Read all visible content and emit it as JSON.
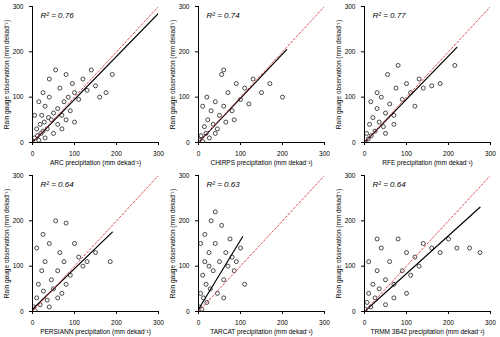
{
  "chart_data": [
    {
      "type": "scatter",
      "x_label": "ARC precipitation (mm dekad⁻¹)",
      "y_label": "Rain gauge observation (mm dekad⁻¹)",
      "annotation": "R² = 0.76",
      "xlim": [
        0,
        300
      ],
      "ylim": [
        0,
        300
      ],
      "xticks": [
        0,
        100,
        200,
        300
      ],
      "yticks": [
        0,
        100,
        200,
        300
      ],
      "series": [
        {
          "type": "scatter",
          "marker": "circle",
          "color": "#000000",
          "x": [
            2,
            5,
            8,
            10,
            12,
            15,
            18,
            20,
            22,
            25,
            28,
            30,
            35,
            38,
            40,
            45,
            50,
            55,
            60,
            65,
            70,
            75,
            80,
            85,
            90,
            95,
            100,
            110,
            120,
            130,
            140,
            150,
            160,
            175,
            190,
            5,
            15,
            25,
            40,
            60,
            80,
            30,
            50,
            70,
            100
          ],
          "values": [
            0,
            10,
            3,
            30,
            15,
            5,
            40,
            20,
            60,
            25,
            45,
            80,
            30,
            55,
            100,
            50,
            65,
            160,
            75,
            120,
            60,
            90,
            150,
            100,
            70,
            130,
            110,
            95,
            140,
            115,
            160,
            125,
            100,
            110,
            150,
            60,
            90,
            110,
            140,
            40,
            50,
            10,
            20,
            30,
            45
          ]
        },
        {
          "type": "line",
          "color": "#000000",
          "line_style": "solid",
          "x": [
            0,
            300
          ],
          "values": [
            0,
            285
          ]
        },
        {
          "type": "line",
          "color": "#e05050",
          "line_style": "dotted",
          "x": [
            0,
            300
          ],
          "values": [
            0,
            300
          ]
        }
      ]
    },
    {
      "type": "scatter",
      "x_label": "CHIRPS precipitation (mm dekad⁻¹)",
      "y_label": "Rain gauge observation (mm dekad⁻¹)",
      "annotation": "R² = 0.74",
      "xlim": [
        0,
        300
      ],
      "ylim": [
        0,
        300
      ],
      "xticks": [
        0,
        100,
        200,
        300
      ],
      "yticks": [
        0,
        100,
        200,
        300
      ],
      "series": [
        {
          "type": "scatter",
          "marker": "circle",
          "color": "#000000",
          "x": [
            3,
            6,
            10,
            14,
            18,
            22,
            26,
            30,
            35,
            40,
            45,
            50,
            55,
            60,
            65,
            70,
            80,
            90,
            100,
            110,
            120,
            130,
            150,
            170,
            200,
            10,
            20,
            40,
            60,
            85
          ],
          "values": [
            5,
            15,
            2,
            35,
            20,
            50,
            10,
            70,
            40,
            90,
            30,
            60,
            150,
            80,
            45,
            110,
            70,
            130,
            95,
            120,
            85,
            140,
            110,
            130,
            100,
            80,
            100,
            20,
            160,
            50
          ]
        },
        {
          "type": "line",
          "color": "#000000",
          "line_style": "solid",
          "x": [
            0,
            210
          ],
          "values": [
            0,
            205
          ]
        },
        {
          "type": "line",
          "color": "#e05050",
          "line_style": "dotted",
          "x": [
            0,
            300
          ],
          "values": [
            0,
            300
          ]
        }
      ]
    },
    {
      "type": "scatter",
      "x_label": "RFE precipitation (mm dekad⁻¹)",
      "y_label": "Rain gauge observation (mm dekad⁻¹)",
      "annotation": "R² = 0.77",
      "xlim": [
        0,
        300
      ],
      "ylim": [
        0,
        300
      ],
      "xticks": [
        0,
        100,
        200,
        300
      ],
      "yticks": [
        0,
        100,
        200,
        300
      ],
      "series": [
        {
          "type": "scatter",
          "marker": "circle",
          "color": "#000000",
          "x": [
            2,
            5,
            9,
            12,
            16,
            20,
            25,
            30,
            35,
            40,
            45,
            50,
            55,
            60,
            70,
            75,
            80,
            90,
            100,
            110,
            120,
            130,
            140,
            160,
            180,
            215,
            15,
            30,
            50,
            70
          ],
          "values": [
            0,
            20,
            8,
            40,
            15,
            55,
            25,
            75,
            45,
            100,
            35,
            65,
            150,
            85,
            60,
            120,
            170,
            95,
            130,
            110,
            80,
            140,
            120,
            125,
            130,
            170,
            90,
            110,
            20,
            40
          ]
        },
        {
          "type": "line",
          "color": "#000000",
          "line_style": "solid",
          "x": [
            0,
            220
          ],
          "values": [
            0,
            210
          ]
        },
        {
          "type": "line",
          "color": "#e05050",
          "line_style": "dotted",
          "x": [
            0,
            300
          ],
          "values": [
            0,
            300
          ]
        }
      ]
    },
    {
      "type": "scatter",
      "x_label": "PERSIANN precipitation (mm dekad⁻¹)",
      "y_label": "Rain gauge observation (mm dekad⁻¹)",
      "annotation": "R² = 0.64",
      "xlim": [
        0,
        300
      ],
      "ylim": [
        0,
        300
      ],
      "xticks": [
        0,
        100,
        200,
        300
      ],
      "yticks": [
        0,
        100,
        200,
        300
      ],
      "series": [
        {
          "type": "scatter",
          "marker": "circle",
          "color": "#000000",
          "x": [
            3,
            6,
            10,
            14,
            18,
            22,
            26,
            30,
            35,
            40,
            45,
            50,
            55,
            60,
            65,
            70,
            75,
            80,
            90,
            100,
            110,
            120,
            130,
            150,
            185,
            10,
            25,
            40,
            60,
            80
          ],
          "values": [
            10,
            2,
            30,
            60,
            15,
            90,
            45,
            110,
            25,
            150,
            70,
            50,
            200,
            90,
            130,
            40,
            110,
            195,
            80,
            150,
            120,
            100,
            110,
            130,
            110,
            140,
            170,
            10,
            30,
            60
          ]
        },
        {
          "type": "line",
          "color": "#000000",
          "line_style": "solid",
          "x": [
            0,
            190
          ],
          "values": [
            5,
            175
          ]
        },
        {
          "type": "line",
          "color": "#e05050",
          "line_style": "dotted",
          "x": [
            0,
            300
          ],
          "values": [
            0,
            300
          ]
        }
      ]
    },
    {
      "type": "scatter",
      "x_label": "TARCAT precipitation (mm dekad⁻¹)",
      "y_label": "Rain gauge observation (mm dekad⁻¹)",
      "annotation": "R² = 0.63",
      "xlim": [
        0,
        300
      ],
      "ylim": [
        0,
        300
      ],
      "xticks": [
        0,
        100,
        200,
        300
      ],
      "yticks": [
        0,
        100,
        200,
        300
      ],
      "series": [
        {
          "type": "scatter",
          "marker": "circle",
          "color": "#000000",
          "x": [
            2,
            5,
            8,
            10,
            12,
            15,
            18,
            20,
            25,
            28,
            30,
            35,
            40,
            45,
            50,
            55,
            60,
            65,
            70,
            75,
            80,
            85,
            90,
            100,
            110,
            5,
            15,
            25,
            40,
            60
          ],
          "values": [
            10,
            40,
            5,
            80,
            30,
            110,
            60,
            20,
            130,
            50,
            200,
            90,
            150,
            40,
            110,
            190,
            70,
            130,
            100,
            160,
            120,
            90,
            110,
            140,
            60,
            150,
            170,
            100,
            220,
            30
          ]
        },
        {
          "type": "line",
          "color": "#000000",
          "line_style": "solid",
          "x": [
            0,
            105
          ],
          "values": [
            5,
            165
          ]
        },
        {
          "type": "line",
          "color": "#e05050",
          "line_style": "dotted",
          "x": [
            0,
            300
          ],
          "values": [
            0,
            300
          ]
        }
      ]
    },
    {
      "type": "scatter",
      "x_label": "TRMM 3B42 precipitation (mm dekad⁻¹)",
      "y_label": "Rain gauge observation (mm dekad⁻¹)",
      "annotation": "R² = 0.64",
      "xlim": [
        0,
        300
      ],
      "ylim": [
        0,
        300
      ],
      "xticks": [
        0,
        100,
        200,
        300
      ],
      "yticks": [
        0,
        100,
        200,
        300
      ],
      "series": [
        {
          "type": "scatter",
          "marker": "circle",
          "color": "#000000",
          "x": [
            2,
            6,
            10,
            15,
            20,
            25,
            30,
            35,
            40,
            50,
            60,
            70,
            80,
            90,
            100,
            110,
            120,
            130,
            140,
            160,
            180,
            200,
            220,
            250,
            275,
            10,
            30,
            50,
            70,
            100
          ],
          "values": [
            5,
            20,
            40,
            10,
            60,
            30,
            90,
            50,
            140,
            70,
            110,
            60,
            160,
            90,
            130,
            80,
            120,
            100,
            150,
            140,
            130,
            160,
            140,
            140,
            130,
            110,
            160,
            15,
            30,
            40
          ]
        },
        {
          "type": "line",
          "color": "#000000",
          "line_style": "solid",
          "x": [
            0,
            275
          ],
          "values": [
            0,
            230
          ]
        },
        {
          "type": "line",
          "color": "#e05050",
          "line_style": "dotted",
          "x": [
            0,
            300
          ],
          "values": [
            0,
            300
          ]
        }
      ]
    }
  ]
}
